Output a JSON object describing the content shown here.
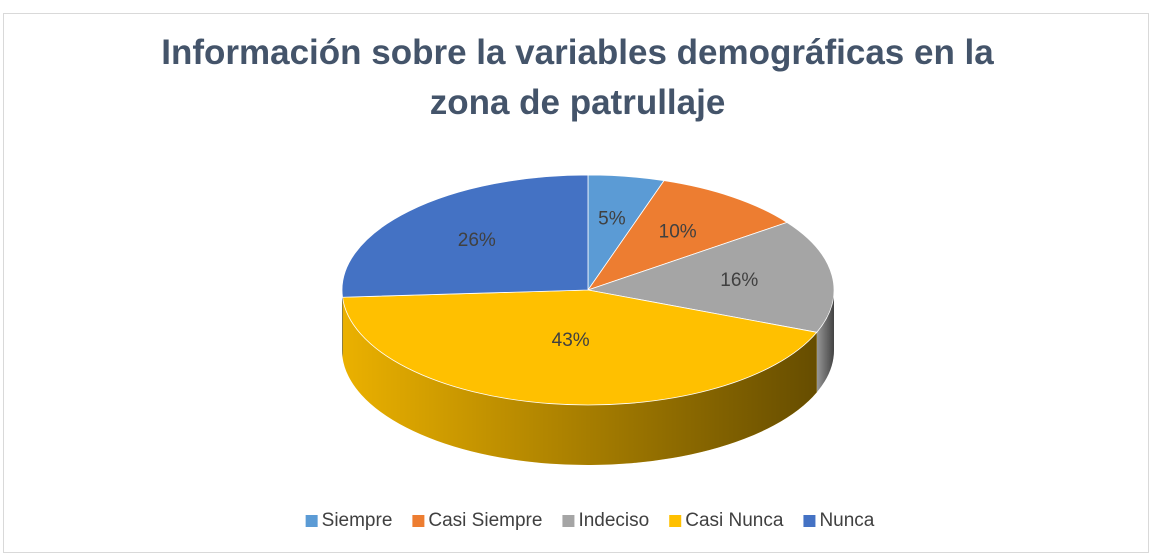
{
  "chart_data": {
    "type": "pie",
    "title": "Información sobre la variables demográficas en la zona de patrullaje",
    "categories": [
      "Siempre",
      "Casi Siempre",
      "Indeciso",
      "Casi Nunca",
      "Nunca"
    ],
    "values": [
      5,
      10,
      16,
      43,
      26
    ],
    "value_labels": [
      "5%",
      "10%",
      "16%",
      "43%",
      "26%"
    ],
    "colors": [
      "#5b9bd5",
      "#ed7d31",
      "#a5a5a5",
      "#ffc000",
      "#4472c4"
    ],
    "legend": "bottom"
  }
}
